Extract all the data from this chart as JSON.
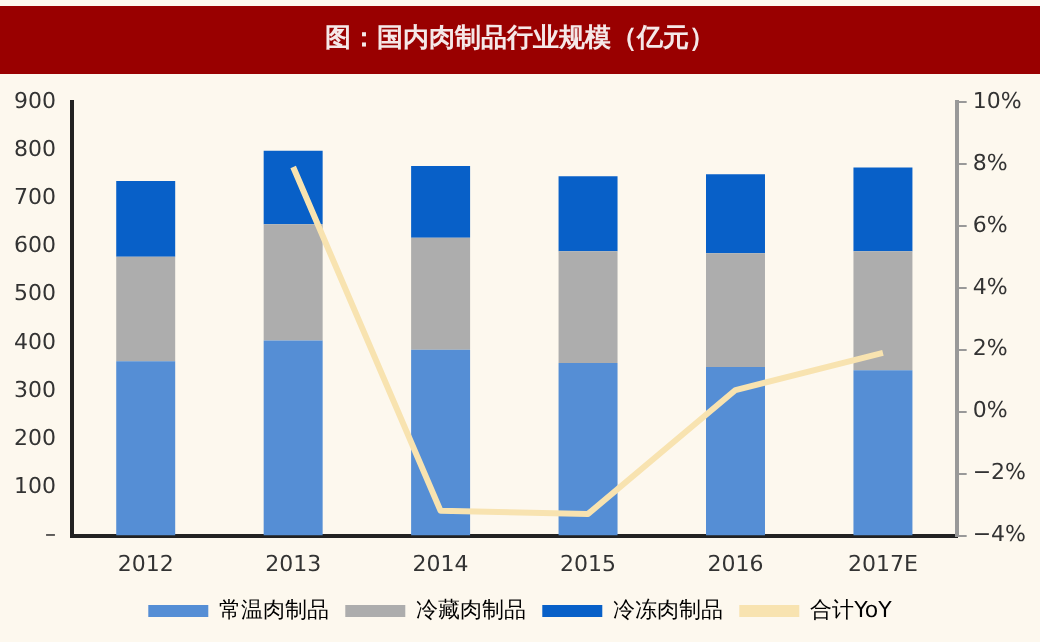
{
  "chart_data": {
    "type": "bar",
    "title": "图：国内肉制品行业规模（亿元）",
    "stacked": true,
    "legend": "bottom",
    "grid": false,
    "categories": [
      "2012",
      "2013",
      "2014",
      "2015",
      "2016",
      "2017E"
    ],
    "series": [
      {
        "name": "常温肉制品",
        "color": "#558ed5",
        "values": [
          362,
          405,
          386,
          358,
          350,
          343
        ]
      },
      {
        "name": "冷藏肉制品",
        "color": "#adadad",
        "values": [
          217,
          241,
          232,
          232,
          236,
          247
        ]
      },
      {
        "name": "冷冻肉制品",
        "color": "#0860c8",
        "values": [
          157,
          153,
          149,
          156,
          164,
          174
        ]
      },
      {
        "name": "合计YoY",
        "type": "line",
        "axis": "y2",
        "color": "#f8e3b0",
        "marker": "none",
        "values": [
          null,
          7.9,
          -3.2,
          -3.3,
          0.7,
          1.9
        ]
      }
    ],
    "ylim": [
      0,
      900
    ],
    "yticks": [
      {
        "value": 0,
        "label": "–"
      },
      100,
      200,
      300,
      400,
      500,
      600,
      700,
      800,
      900
    ],
    "y2lim": [
      -4,
      10
    ],
    "y2ticks": [
      {
        "value": -4,
        "label": "−4%"
      },
      {
        "value": -2,
        "label": "−2%"
      },
      {
        "value": 0,
        "label": "0%"
      },
      {
        "value": 2,
        "label": "2%"
      },
      {
        "value": 4,
        "label": "4%"
      },
      {
        "value": 6,
        "label": "6%"
      },
      {
        "value": 8,
        "label": "8%"
      },
      {
        "value": 10,
        "label": "10%"
      }
    ]
  }
}
